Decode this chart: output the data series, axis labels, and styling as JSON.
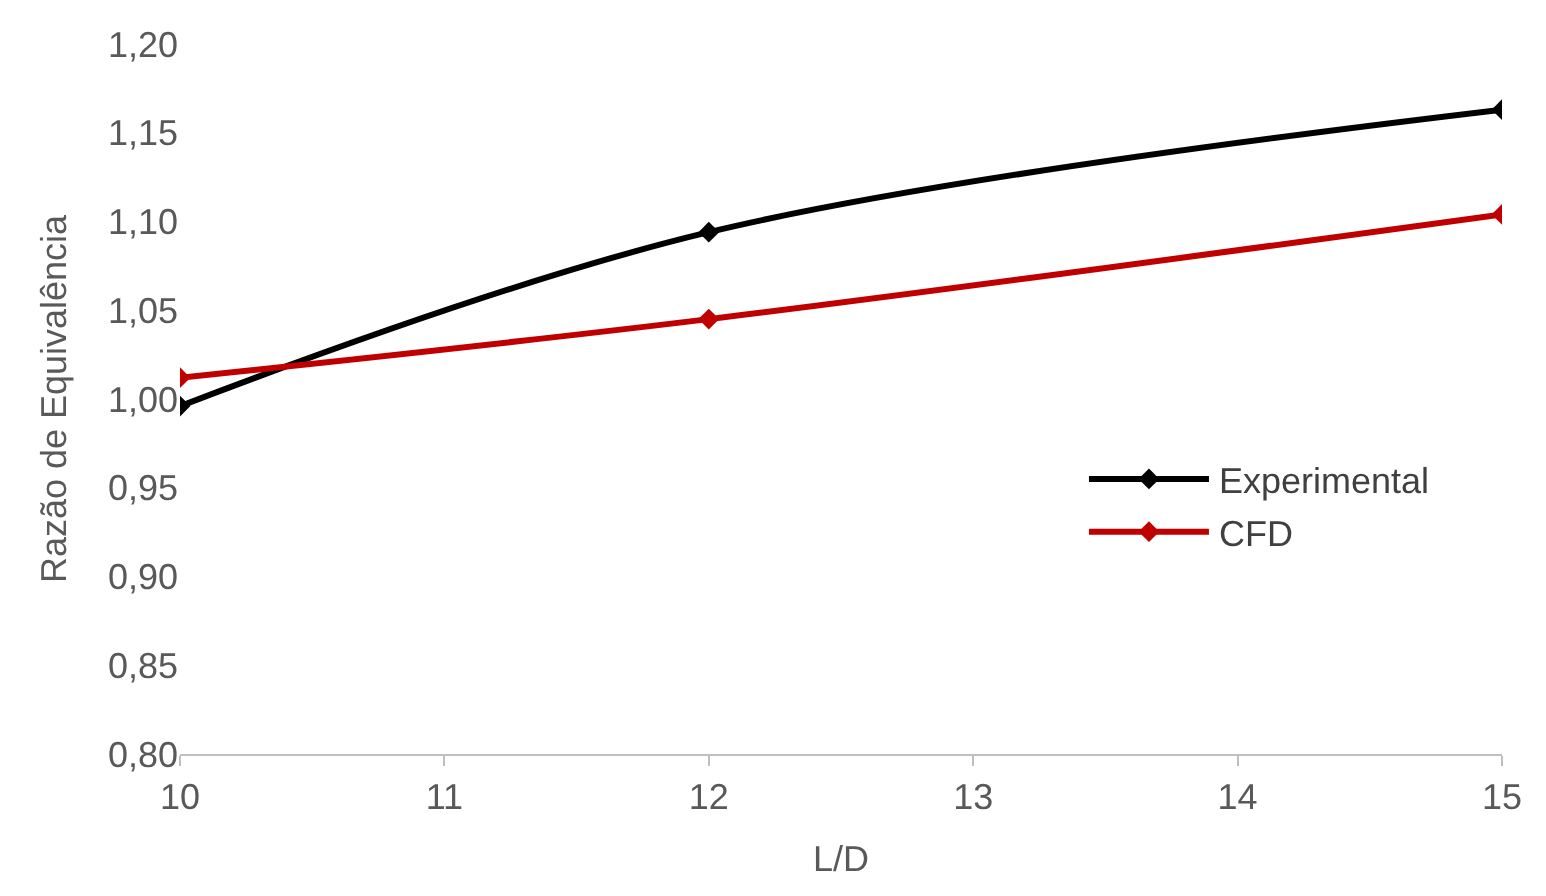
{
  "chart_data": {
    "type": "line",
    "xlabel": "L/D",
    "ylabel": "Razão de Equivalência",
    "x": [
      10,
      12,
      15
    ],
    "series": [
      {
        "name": "Experimental",
        "color": "#000000",
        "values": [
          0.996,
          1.094,
          1.163
        ]
      },
      {
        "name": "CFD",
        "color": "#c00000",
        "values": [
          1.012,
          1.045,
          1.104
        ]
      }
    ],
    "xlim": [
      10,
      15
    ],
    "xticks": [
      10,
      11,
      12,
      13,
      14,
      15
    ],
    "ylim": [
      0.8,
      1.2
    ],
    "yticks": [
      {
        "value": 0.8,
        "label": "0,80"
      },
      {
        "value": 0.85,
        "label": "0,85"
      },
      {
        "value": 0.9,
        "label": "0,90"
      },
      {
        "value": 0.95,
        "label": "0,95"
      },
      {
        "value": 1.0,
        "label": "1,00"
      },
      {
        "value": 1.05,
        "label": "1,05"
      },
      {
        "value": 1.1,
        "label": "1,10"
      },
      {
        "value": 1.15,
        "label": "1,15"
      },
      {
        "value": 1.2,
        "label": "1,20"
      }
    ],
    "legend": "right",
    "marker": "diamond",
    "line_style": "solid"
  }
}
